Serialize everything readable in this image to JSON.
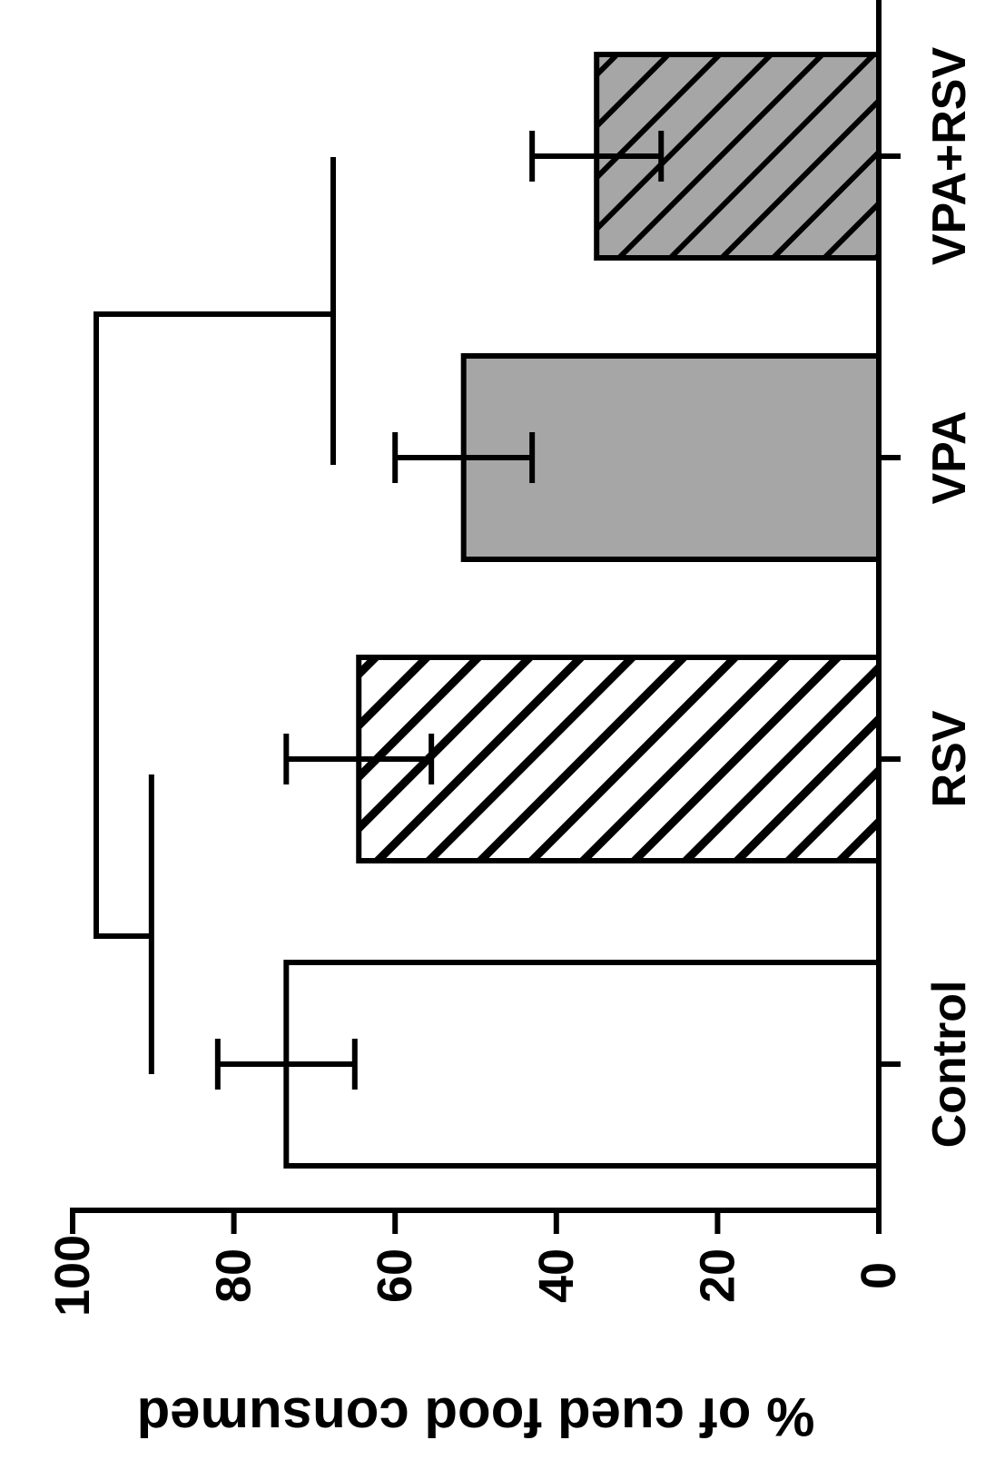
{
  "chart_data": {
    "type": "bar",
    "orientation": "rotated-90-clockwise",
    "categories": [
      "Control",
      "RSV",
      "VPA",
      "VPA+RSV"
    ],
    "values": [
      73.5,
      64.5,
      51.5,
      35
    ],
    "errors": [
      8.5,
      9,
      8.5,
      8
    ],
    "fills": [
      "none",
      "hatched",
      "solid",
      "solid-hatched"
    ],
    "ylabel": "% of cued food consumed",
    "yticks": [
      0,
      20,
      40,
      60,
      80,
      100
    ],
    "ylim": [
      0,
      100
    ],
    "significance": {
      "groups": [
        [
          "Control",
          "RSV"
        ],
        [
          "VPA",
          "VPA+RSV"
        ]
      ],
      "label": "*"
    },
    "colors": {
      "axis": "#000000",
      "bar_gray": "#a6a6a6",
      "bar_white": "#ffffff"
    }
  }
}
